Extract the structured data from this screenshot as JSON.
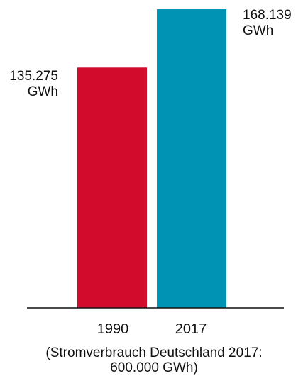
{
  "chart_data": {
    "type": "bar",
    "categories": [
      "1990",
      "2017"
    ],
    "values": [
      135275,
      168139
    ],
    "unit": "GWh",
    "value_labels": [
      {
        "value": "135.275",
        "unit": "GWh"
      },
      {
        "value": "168.139",
        "unit": "GWh"
      }
    ],
    "colors": [
      "#d20a2b",
      "#0093b2"
    ],
    "ylim": [
      0,
      170000
    ],
    "grid": false,
    "legend": "none",
    "title": "",
    "xlabel": "",
    "ylabel": "",
    "caption": [
      "(Stromverbrauch Deutschland 2017:",
      "600.000 GWh)"
    ]
  }
}
